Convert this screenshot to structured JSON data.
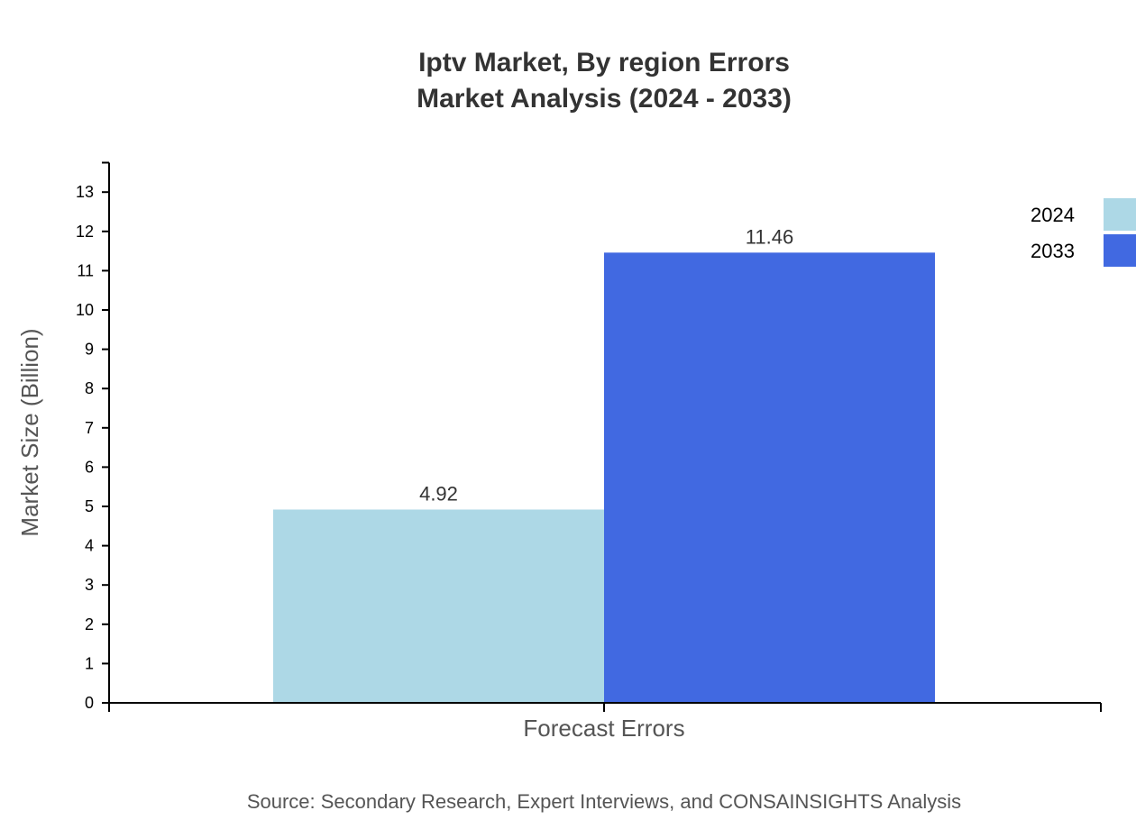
{
  "title": {
    "line1": "Iptv Market, By region Errors",
    "line2": "Market Analysis (2024 - 2033)"
  },
  "source": "Source: Secondary Research, Expert Interviews, and CONSAINSIGHTS Analysis",
  "colors": {
    "series_2024": "#add8e6",
    "series_2033": "#4169e1",
    "axis": "#000000",
    "text": "#333333"
  },
  "chart_data": {
    "type": "bar",
    "title": "Iptv Market, By region Errors Market Analysis (2024 - 2033)",
    "categories": [
      "Forecast Errors"
    ],
    "series": [
      {
        "name": "2024",
        "values": [
          4.92
        ],
        "color": "#add8e6"
      },
      {
        "name": "2033",
        "values": [
          11.46
        ],
        "color": "#4169e1"
      }
    ],
    "xlabel": "Forecast Errors",
    "ylabel": "Market Size (Billion)",
    "ylim": [
      0,
      13.75
    ],
    "yticks": [
      0,
      1,
      2,
      3,
      4,
      5,
      6,
      7,
      8,
      9,
      10,
      11,
      12,
      13
    ],
    "data_labels": [
      "4.92",
      "11.46"
    ],
    "grid": false,
    "legend_position": "top-right"
  }
}
